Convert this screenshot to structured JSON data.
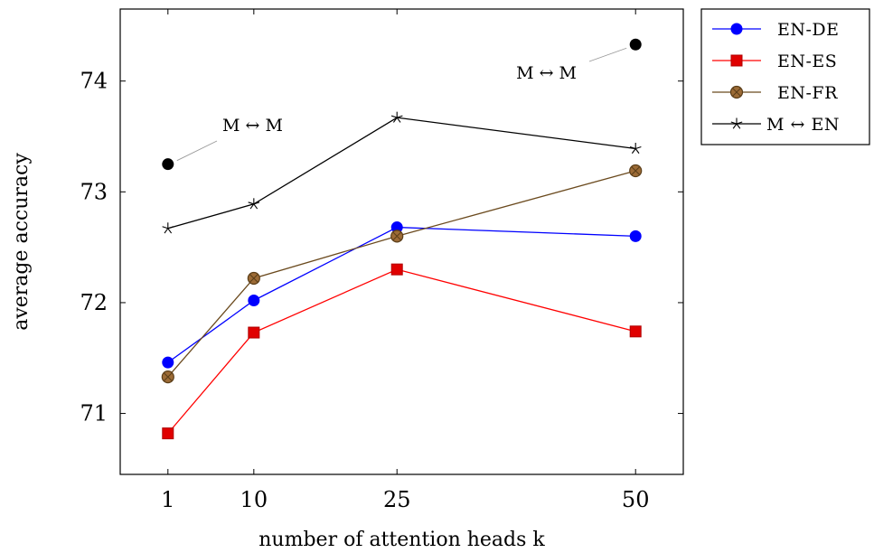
{
  "chart_data": {
    "type": "line",
    "xlabel": "number of attention heads k",
    "ylabel": "average accuracy",
    "x": [
      1,
      10,
      25,
      50
    ],
    "xticks": [
      "1",
      "10",
      "25",
      "50"
    ],
    "yticks": [
      "71",
      "72",
      "73",
      "74"
    ],
    "xlim": [
      -4,
      55
    ],
    "ylim": [
      70.45,
      74.65
    ],
    "grid": false,
    "legend_position": "outside-right-top",
    "series": [
      {
        "name": "EN-DE",
        "color": "#0000ff",
        "marker": "circle",
        "values": [
          71.46,
          72.02,
          72.68,
          72.6
        ]
      },
      {
        "name": "EN-ES",
        "color": "#ff0000",
        "marker": "square",
        "values": [
          70.82,
          71.73,
          72.3,
          71.74
        ]
      },
      {
        "name": "EN-FR",
        "color": "#6b4a1e",
        "marker": "circle-cross",
        "values": [
          71.33,
          72.22,
          72.6,
          73.19
        ]
      },
      {
        "name": "M ↔ EN",
        "color": "#000000",
        "marker": "star",
        "values": [
          72.67,
          72.89,
          73.67,
          73.39
        ]
      }
    ],
    "annotations": [
      {
        "text": "M ↔ M",
        "x": 1,
        "y": 73.25
      },
      {
        "text": "M ↔ M",
        "x": 50,
        "y": 74.33
      }
    ]
  }
}
